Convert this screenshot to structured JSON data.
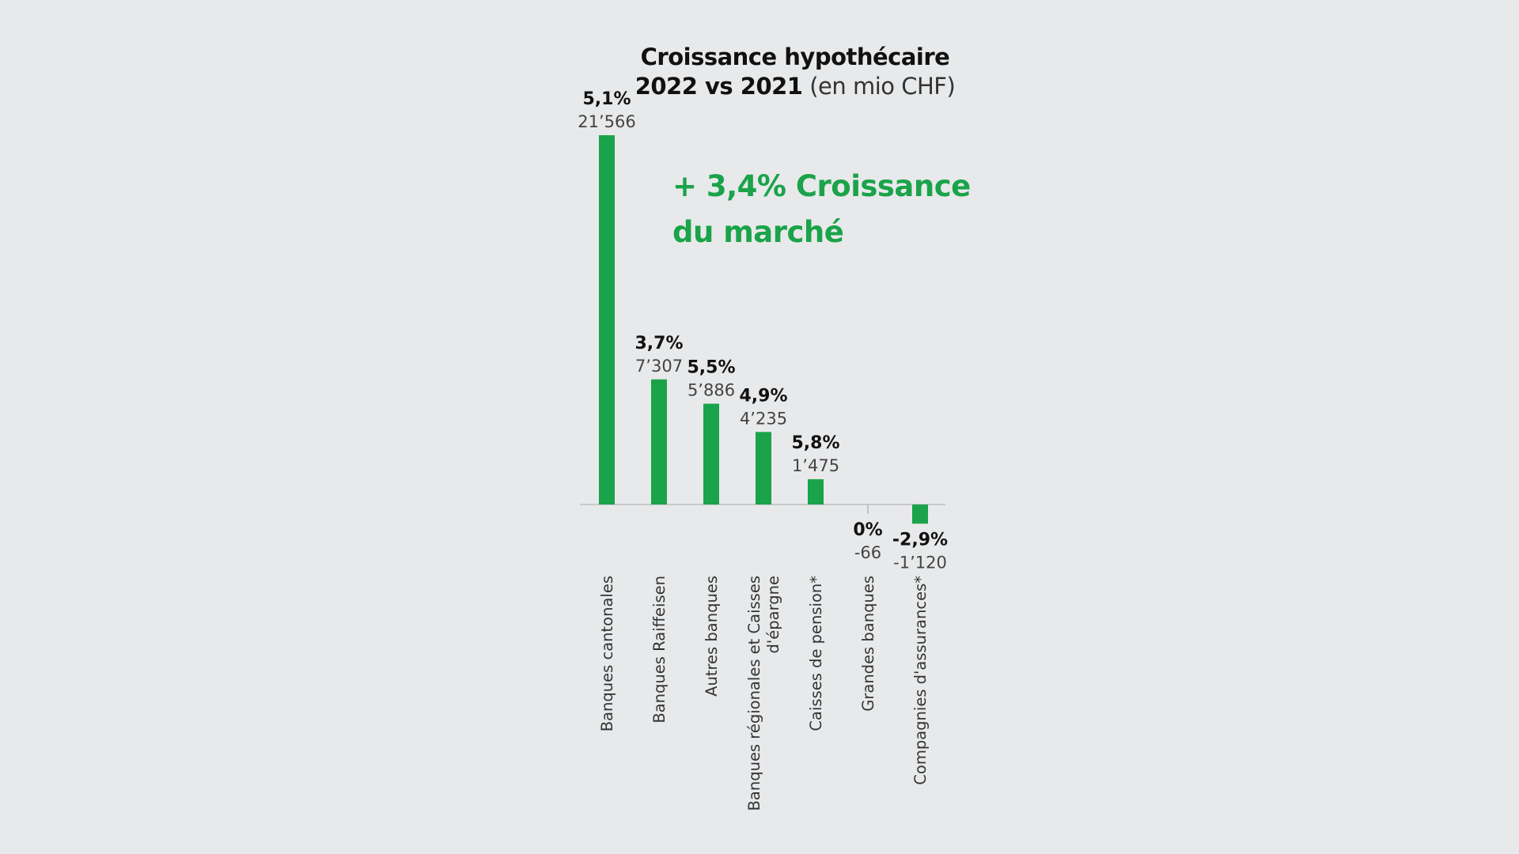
{
  "chart_data": {
    "type": "bar",
    "title_line1": "Croissance hypothécaire",
    "title_line2_bold": "2022 vs 2021",
    "title_line2_light": "(en mio CHF)",
    "annotation_line1": "+ 3,4% Croissance",
    "annotation_line2": "du marché",
    "categories": [
      [
        "Banques cantonales"
      ],
      [
        "Banques Raiffeisen"
      ],
      [
        "Autres banques"
      ],
      [
        "Banques régionales et Caisses",
        "d'épargne"
      ],
      [
        "Caisses de pension*"
      ],
      [
        "Grandes banques"
      ],
      [
        "Compagnies d'assurances*"
      ]
    ],
    "values": [
      21566,
      7307,
      5886,
      4235,
      1475,
      -66,
      -1120
    ],
    "value_labels": [
      "21’566",
      "7’307",
      "5’886",
      "4’235",
      "1’475",
      "-66",
      "-1’120"
    ],
    "percent_labels": [
      "5,1%",
      "3,7%",
      "5,5%",
      "4,9%",
      "5,8%",
      "0%",
      "-2,9%"
    ],
    "bar_color": "#1aa34a",
    "xlabel": "",
    "ylabel": "",
    "grid": false
  }
}
